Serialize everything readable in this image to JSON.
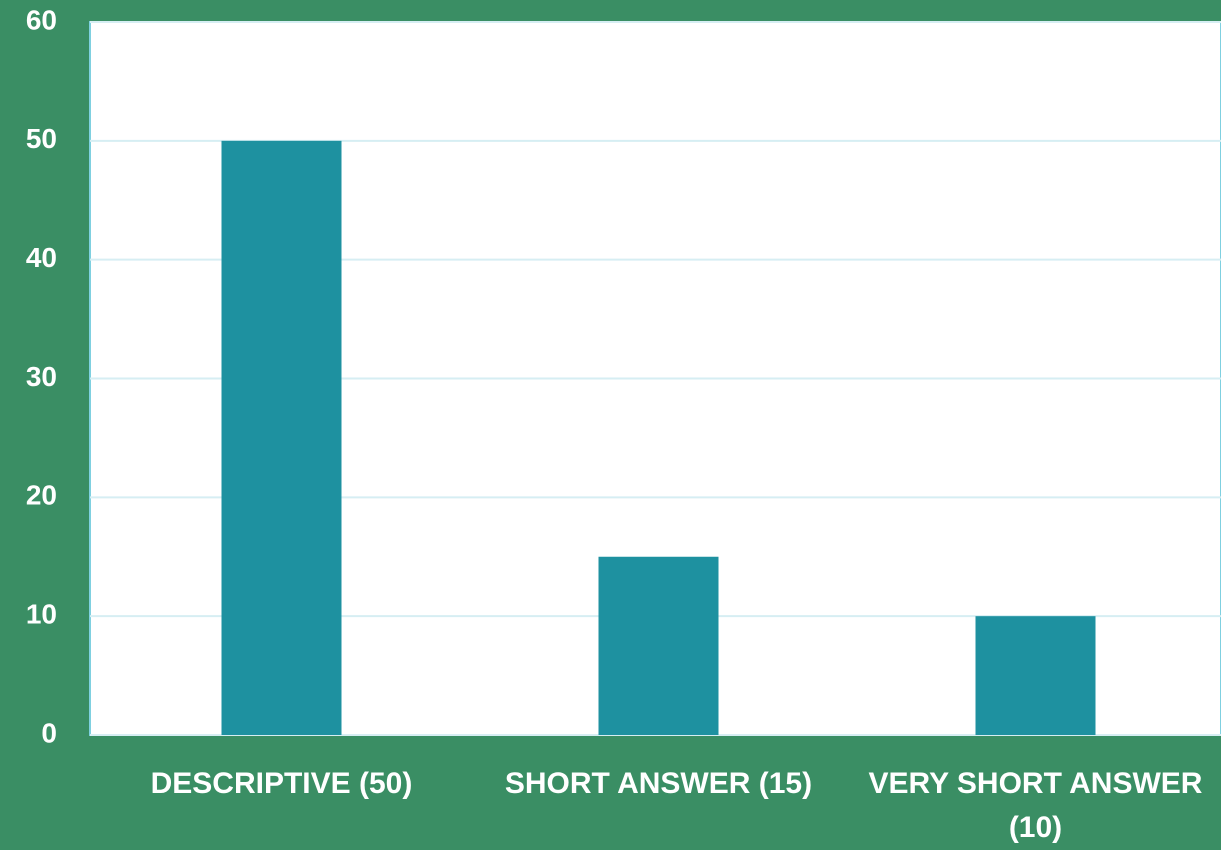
{
  "chart_data": {
    "type": "bar",
    "categories": [
      "DESCRIPTIVE (50)",
      "SHORT ANSWER (15)",
      "VERY SHORT ANSWER (10)"
    ],
    "values": [
      50,
      15,
      10
    ],
    "color": "#1e91a0",
    "ylim": [
      0,
      60
    ],
    "yticks": [
      0,
      10,
      20,
      30,
      40,
      50,
      60
    ],
    "grid": true
  }
}
